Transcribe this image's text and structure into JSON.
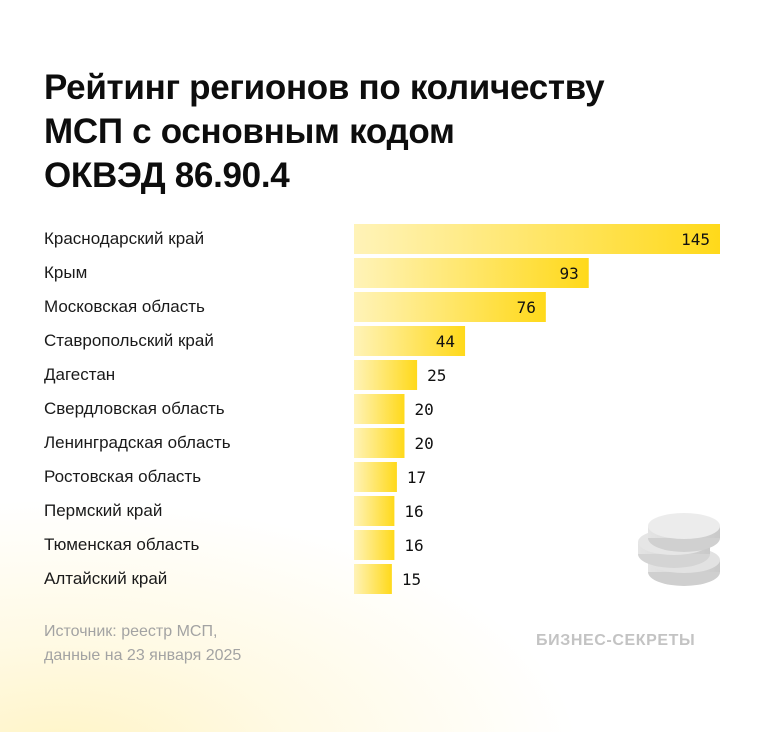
{
  "title_lines": [
    "Рейтинг регионов по количеству",
    "МСП с основным кодом",
    "ОКВЭД 86.90.4"
  ],
  "chart_data": {
    "type": "bar",
    "orientation": "horizontal",
    "title": "Рейтинг регионов по количеству МСП с основным кодом ОКВЭД 86.90.4",
    "categories": [
      "Краснодарский край",
      "Крым",
      "Московская область",
      "Ставропольский край",
      "Дагестан",
      "Свердловская область",
      "Ленинградская область",
      "Ростовская область",
      "Пермский край",
      "Тюменская область",
      "Алтайский край"
    ],
    "values": [
      145,
      93,
      76,
      44,
      25,
      20,
      20,
      17,
      16,
      16,
      15
    ],
    "xlim": [
      0,
      145
    ],
    "grid": false,
    "data_labels": true,
    "bar_color_start": "#fff3b8",
    "bar_color_end": "#ffd91a"
  },
  "source": [
    "Источник: реестр МСП,",
    "данные на 23 января 2025"
  ],
  "brand": "БИЗНЕС-СЕКРЕТЫ",
  "colors": {
    "title": "#0d0d0d",
    "source": "#a3a3a3",
    "brand": "#c3c3c3"
  }
}
